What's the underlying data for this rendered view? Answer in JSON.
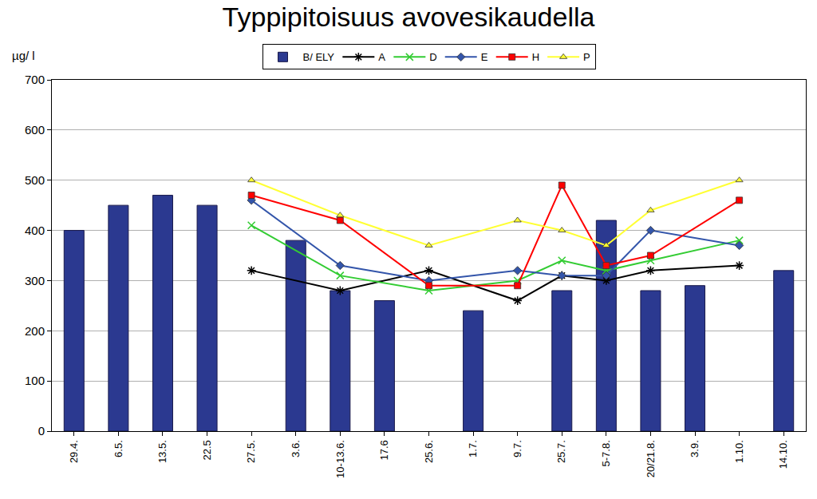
{
  "chart_data": {
    "type": "bar",
    "title": "Typpipitoisuus avovesikaudella",
    "y_label": "µg/ l",
    "categories": [
      "29.4.",
      "6.5.",
      "13.5.",
      "22.5",
      "27.5.",
      "3.6.",
      "10-13.6.",
      "17.6",
      "25.6.",
      "1.7.",
      "9.7.",
      "25.7.",
      "5-7.8.",
      "20/21.8.",
      "3.9.",
      "1.10.",
      "14.10."
    ],
    "series": [
      {
        "name": "B/ ELY",
        "type": "bar",
        "color": "#2b3990",
        "values": [
          400,
          450,
          470,
          450,
          null,
          380,
          280,
          260,
          null,
          240,
          null,
          280,
          420,
          280,
          290,
          null,
          320
        ]
      },
      {
        "name": "A",
        "type": "line",
        "color": "#000000",
        "marker": "asterisk-open",
        "values": [
          null,
          null,
          null,
          null,
          320,
          null,
          280,
          null,
          320,
          null,
          260,
          310,
          300,
          320,
          null,
          330,
          null
        ]
      },
      {
        "name": "D",
        "type": "line",
        "color": "#33cc33",
        "marker": "x-thin-open",
        "values": [
          null,
          null,
          null,
          null,
          410,
          null,
          310,
          null,
          280,
          null,
          300,
          340,
          320,
          340,
          null,
          380,
          null
        ]
      },
      {
        "name": "E",
        "type": "line",
        "color": "#3355aa",
        "marker": "diamond",
        "values": [
          null,
          null,
          null,
          null,
          460,
          null,
          330,
          null,
          300,
          null,
          320,
          310,
          310,
          400,
          null,
          370,
          null
        ]
      },
      {
        "name": "H",
        "type": "line",
        "color": "#ff0000",
        "marker": "square",
        "values": [
          null,
          null,
          null,
          null,
          470,
          null,
          420,
          null,
          290,
          null,
          290,
          490,
          330,
          350,
          null,
          460,
          null
        ]
      },
      {
        "name": "P",
        "type": "line",
        "color": "#ffff33",
        "marker": "triangle-up",
        "values": [
          null,
          null,
          null,
          null,
          500,
          null,
          430,
          null,
          370,
          null,
          420,
          400,
          370,
          440,
          null,
          500,
          null
        ]
      }
    ],
    "ylim": [
      0,
      700
    ],
    "yticks": [
      0,
      100,
      200,
      300,
      400,
      500,
      600,
      700
    ],
    "grid": true,
    "legend": "top"
  }
}
